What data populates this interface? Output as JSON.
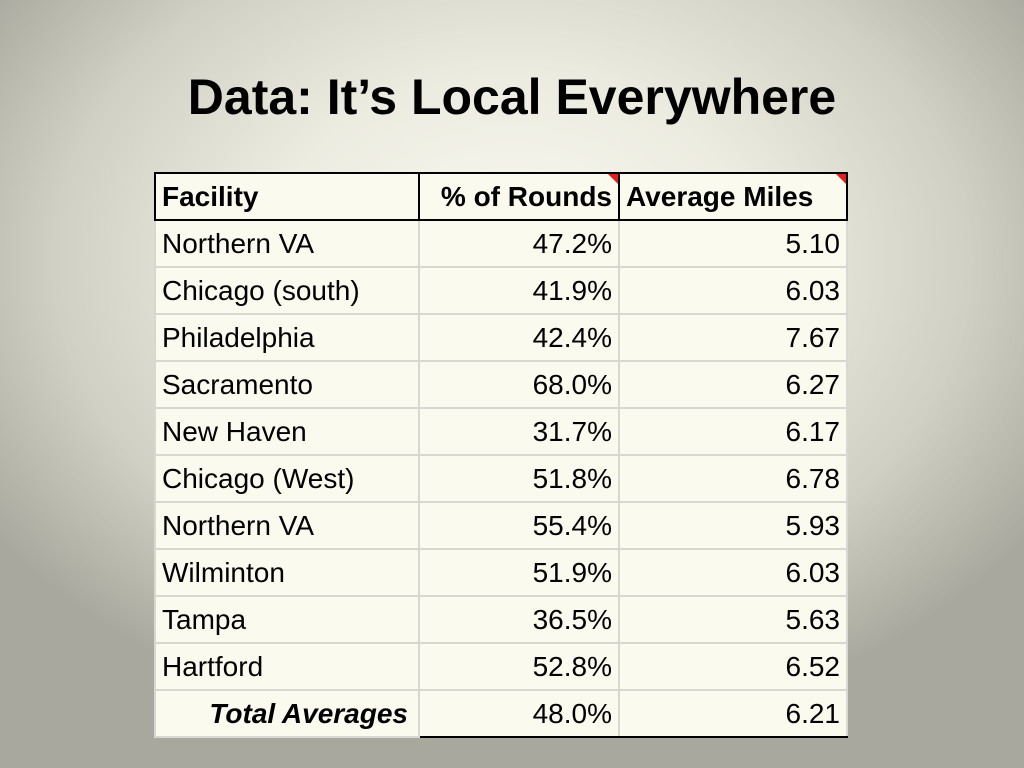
{
  "slide": {
    "title": "Data: It’s Local Everywhere"
  },
  "table": {
    "headers": [
      "Facility",
      "% of Rounds",
      "Average Miles"
    ],
    "rows": [
      [
        "Northern VA",
        "47.2%",
        "5.10"
      ],
      [
        "Chicago (south)",
        "41.9%",
        "6.03"
      ],
      [
        "Philadelphia",
        "42.4%",
        "7.67"
      ],
      [
        "Sacramento",
        "68.0%",
        "6.27"
      ],
      [
        "New Haven",
        "31.7%",
        "6.17"
      ],
      [
        "Chicago (West)",
        "51.8%",
        "6.78"
      ],
      [
        "Northern VA",
        "55.4%",
        "5.93"
      ],
      [
        "Wilminton",
        "51.9%",
        "6.03"
      ],
      [
        "Tampa",
        "36.5%",
        "5.63"
      ],
      [
        "Hartford",
        "52.8%",
        "6.52"
      ]
    ],
    "total": [
      "Total Averages",
      "48.0%",
      "6.21"
    ]
  },
  "colors": {
    "comment_marker": "#e02020",
    "cell_background": "#fbfaee"
  }
}
